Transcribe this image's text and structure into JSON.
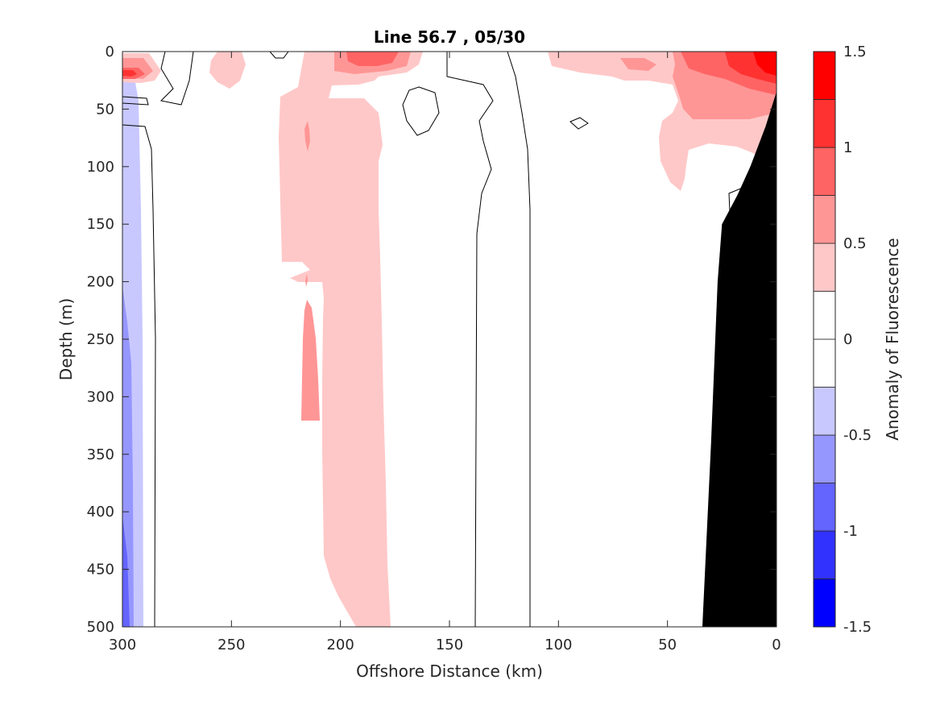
{
  "chart_data": {
    "type": "heatmap",
    "subtype": "filled-contour",
    "title": "Line 56.7 , 05/30",
    "xlabel": "Offshore Distance (km)",
    "ylabel": "Depth (m)",
    "xlim": [
      300,
      0
    ],
    "ylim": [
      0,
      500
    ],
    "x_reversed": true,
    "y_reversed": true,
    "xticks": [
      300,
      250,
      200,
      150,
      100,
      50,
      0
    ],
    "xtick_labels": [
      "300",
      "250",
      "200",
      "150",
      "100",
      "50",
      "0"
    ],
    "yticks": [
      0,
      50,
      100,
      150,
      200,
      250,
      300,
      350,
      400,
      450,
      500
    ],
    "ytick_labels": [
      "0",
      "50",
      "100",
      "150",
      "200",
      "250",
      "300",
      "350",
      "400",
      "450",
      "500"
    ],
    "grid": false,
    "colorbar": {
      "label": "Anomaly of Fluorescence",
      "limits": [
        -1.5,
        1.5
      ],
      "ticks": [
        -1.5,
        -1,
        -0.5,
        0,
        0.5,
        1,
        1.5
      ],
      "tick_labels": [
        "-1.5",
        "-1",
        "-0.5",
        "0",
        "0.5",
        "1",
        "1.5"
      ],
      "levels": [
        -1.5,
        -1.25,
        -1.0,
        -0.75,
        -0.5,
        -0.25,
        0,
        0.25,
        0.5,
        0.75,
        1.0,
        1.25,
        1.5
      ],
      "colors": [
        "#0000ff",
        "#3232ff",
        "#6464ff",
        "#9696ff",
        "#c8c8ff",
        "#ffffff",
        "#ffffff",
        "#ffc8c8",
        "#ff9696",
        "#ff6464",
        "#ff3232",
        "#ff0000"
      ]
    },
    "regions": [
      {
        "class": "-0.5 to -0.25",
        "x_range": [
          300,
          290
        ],
        "depth_range": [
          85,
          500
        ]
      },
      {
        "class": "-0.75 to -0.5",
        "x_range": [
          300,
          295
        ],
        "depth_range": [
          350,
          500
        ]
      },
      {
        "class": "-0.25 to 0",
        "x_range": [
          145,
          125
        ],
        "depth_range": [
          0,
          12
        ]
      },
      {
        "class": "0.25 to 0.5",
        "x_range": [
          228,
          176
        ],
        "depth_range": [
          0,
          500
        ]
      },
      {
        "class": "0.5 to 0.75",
        "x_range": [
          219,
          211
        ],
        "depth_range": [
          215,
          320
        ]
      },
      {
        "class": "0.5 to 0.75",
        "x_range": [
          300,
          290
        ],
        "depth_range": [
          2,
          35
        ]
      },
      {
        "class": "1.0 to 1.25",
        "x_range": [
          298,
          292
        ],
        "depth_range": [
          12,
          25
        ]
      },
      {
        "class": "0.5 to 1.0",
        "x_range": [
          200,
          173
        ],
        "depth_range": [
          0,
          25
        ]
      },
      {
        "class": "0.25 to 1.5",
        "x_range": [
          72,
          0
        ],
        "depth_range": [
          0,
          120
        ]
      }
    ],
    "bathymetry": {
      "fill": "#000000",
      "offshore_km": [
        34,
        30,
        27,
        25,
        18,
        12,
        5,
        0
      ],
      "depth_m": [
        500,
        340,
        200,
        150,
        125,
        100,
        65,
        35
      ]
    }
  }
}
